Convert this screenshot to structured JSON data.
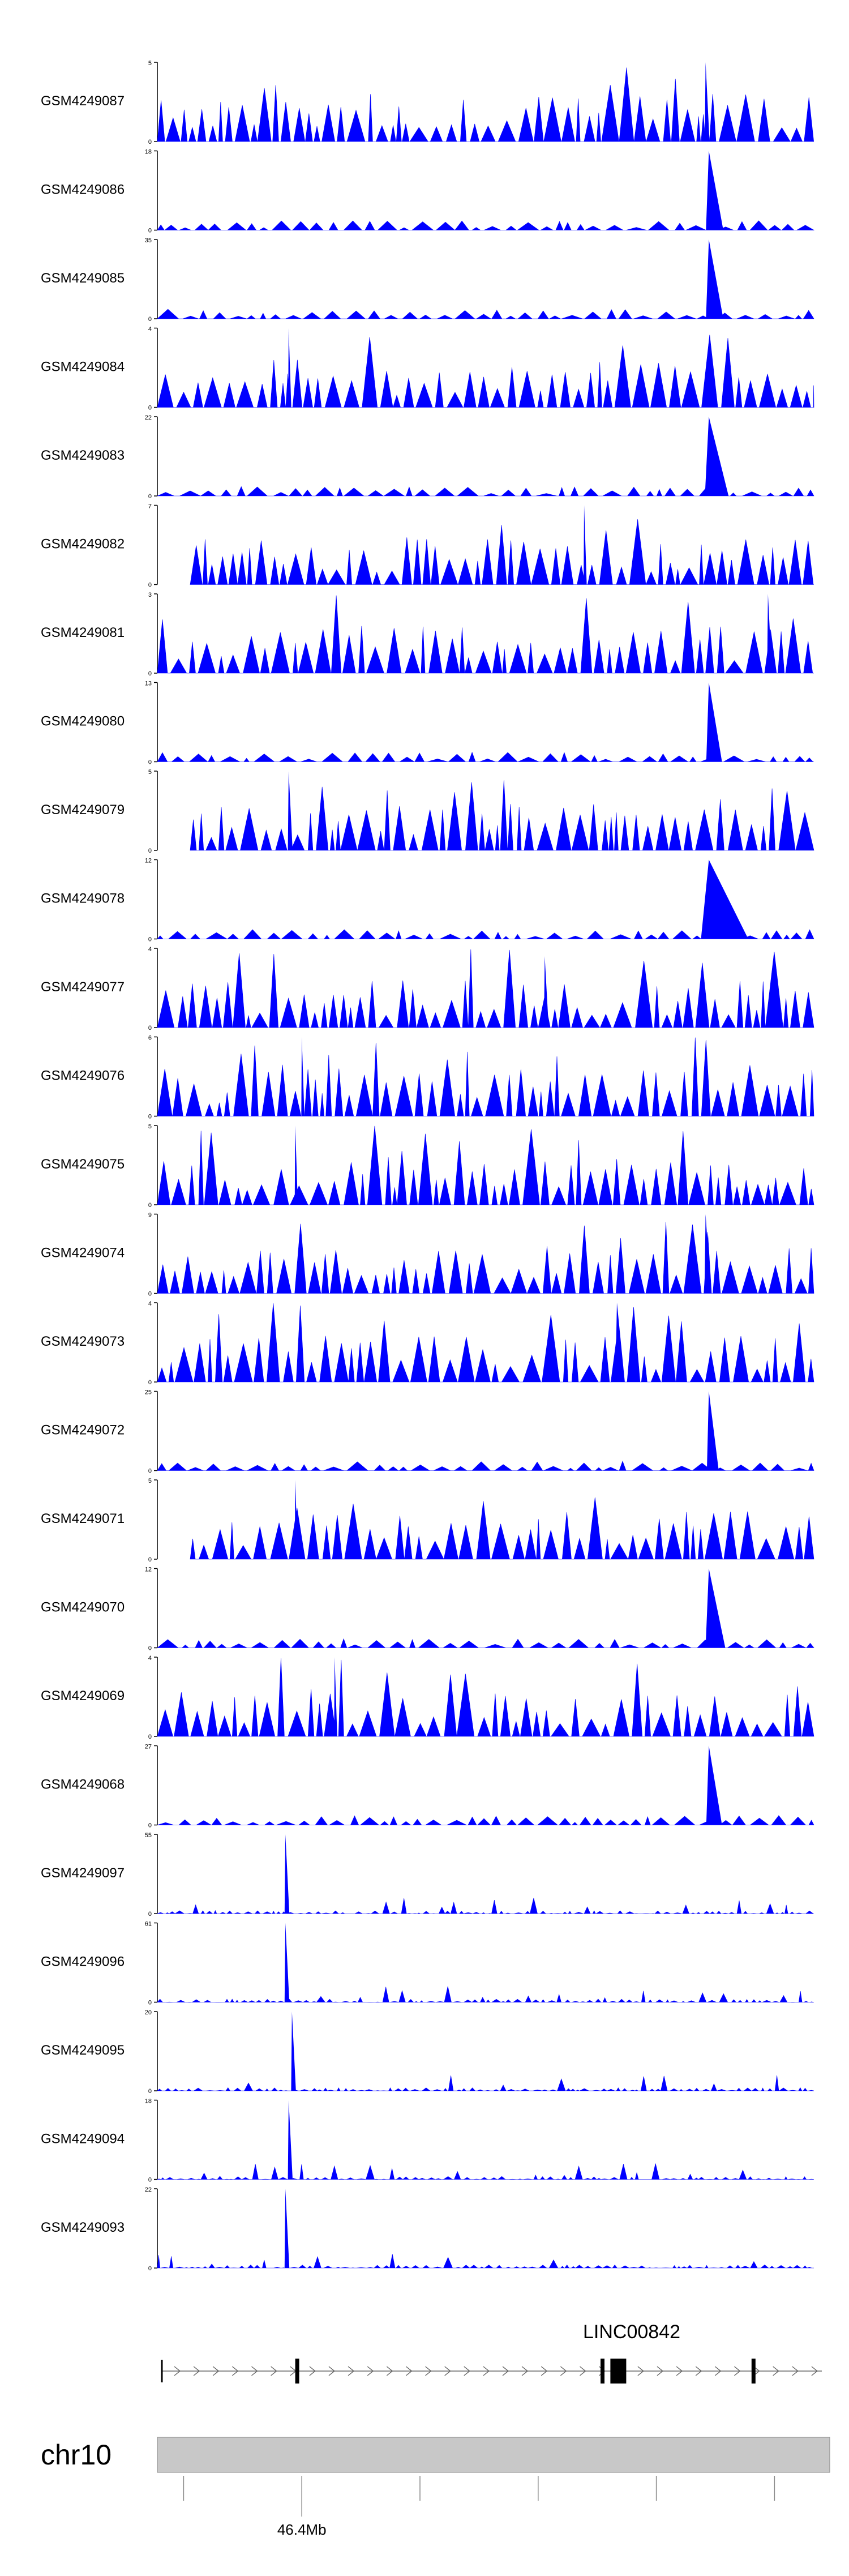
{
  "chart_data": {
    "type": "area",
    "style": {
      "fill_color": "#0000ff",
      "axis_color": "#000000",
      "ideogram_color": "#c8c8c8"
    },
    "tracks": [
      {
        "name": "GSM4249087",
        "ymax": 5,
        "profile": "dense",
        "peak": {
          "x": 0.835,
          "h": 1.0,
          "w": 0.006
        }
      },
      {
        "name": "GSM4249086",
        "ymax": 18,
        "profile": "low",
        "peak": {
          "x": 0.84,
          "h": 1.0,
          "w": 0.022
        }
      },
      {
        "name": "GSM4249085",
        "ymax": 35,
        "profile": "low",
        "peak": {
          "x": 0.84,
          "h": 1.0,
          "w": 0.022
        }
      },
      {
        "name": "GSM4249084",
        "ymax": 4,
        "profile": "dense",
        "peak": {
          "x": 0.2,
          "h": 1.0,
          "w": 0.004
        }
      },
      {
        "name": "GSM4249083",
        "ymax": 22,
        "profile": "low",
        "peak": {
          "x": 0.84,
          "h": 1.0,
          "w": 0.03
        }
      },
      {
        "name": "GSM4249082",
        "ymax": 7,
        "profile": "dense",
        "peak": {
          "x": 0.65,
          "h": 1.0,
          "w": 0.004
        }
      },
      {
        "name": "GSM4249081",
        "ymax": 3,
        "profile": "dense",
        "peak": {
          "x": 0.93,
          "h": 1.0,
          "w": 0.006
        }
      },
      {
        "name": "GSM4249080",
        "ymax": 13,
        "profile": "low",
        "peak": {
          "x": 0.84,
          "h": 1.0,
          "w": 0.02
        }
      },
      {
        "name": "GSM4249079",
        "ymax": 5,
        "profile": "dense",
        "peak": {
          "x": 0.2,
          "h": 1.0,
          "w": 0.006
        }
      },
      {
        "name": "GSM4249078",
        "ymax": 12,
        "profile": "low",
        "peak": {
          "x": 0.84,
          "h": 1.0,
          "w": 0.06
        }
      },
      {
        "name": "GSM4249077",
        "ymax": 4,
        "profile": "dense",
        "peak": {
          "x": 0.59,
          "h": 0.9,
          "w": 0.006
        }
      },
      {
        "name": "GSM4249076",
        "ymax": 6,
        "profile": "dense",
        "peak": {
          "x": 0.22,
          "h": 1.0,
          "w": 0.004
        }
      },
      {
        "name": "GSM4249075",
        "ymax": 5,
        "profile": "dense",
        "peak": {
          "x": 0.21,
          "h": 1.0,
          "w": 0.004
        }
      },
      {
        "name": "GSM4249074",
        "ymax": 9,
        "profile": "dense",
        "peak": {
          "x": 0.835,
          "h": 1.0,
          "w": 0.008
        }
      },
      {
        "name": "GSM4249073",
        "ymax": 4,
        "profile": "dense",
        "peak": {
          "x": 0.7,
          "h": 1.0,
          "w": 0.012
        }
      },
      {
        "name": "GSM4249072",
        "ymax": 25,
        "profile": "low",
        "peak": {
          "x": 0.84,
          "h": 1.0,
          "w": 0.015
        }
      },
      {
        "name": "GSM4249071",
        "ymax": 5,
        "profile": "dense",
        "peak": {
          "x": 0.21,
          "h": 1.0,
          "w": 0.004
        }
      },
      {
        "name": "GSM4249070",
        "ymax": 12,
        "profile": "low",
        "peak": {
          "x": 0.84,
          "h": 1.0,
          "w": 0.025
        }
      },
      {
        "name": "GSM4249069",
        "ymax": 4,
        "profile": "dense",
        "peak": {
          "x": 0.27,
          "h": 1.0,
          "w": 0.004
        }
      },
      {
        "name": "GSM4249068",
        "ymax": 27,
        "profile": "low",
        "peak": {
          "x": 0.84,
          "h": 1.0,
          "w": 0.02
        }
      },
      {
        "name": "GSM4249097",
        "ymax": 55,
        "profile": "sparse",
        "peak": {
          "x": 0.195,
          "h": 1.0,
          "w": 0.006
        }
      },
      {
        "name": "GSM4249096",
        "ymax": 61,
        "profile": "sparse",
        "peak": {
          "x": 0.195,
          "h": 1.0,
          "w": 0.006
        }
      },
      {
        "name": "GSM4249095",
        "ymax": 20,
        "profile": "sparse",
        "peak": {
          "x": 0.205,
          "h": 1.0,
          "w": 0.006
        }
      },
      {
        "name": "GSM4249094",
        "ymax": 18,
        "profile": "sparse",
        "peak": {
          "x": 0.2,
          "h": 1.0,
          "w": 0.006
        }
      },
      {
        "name": "GSM4249093",
        "ymax": 22,
        "profile": "sparse",
        "peak": {
          "x": 0.195,
          "h": 1.0,
          "w": 0.006
        }
      }
    ],
    "gene": {
      "label": "LINC00842",
      "exons": [
        0.21,
        0.675,
        0.69,
        0.905
      ]
    },
    "chromosome": {
      "label": "chr10",
      "tick_label": "46.4Mb",
      "ticks": [
        0.04,
        0.22,
        0.4,
        0.58,
        0.76,
        0.94
      ],
      "labeled_tick_index": 1
    }
  }
}
